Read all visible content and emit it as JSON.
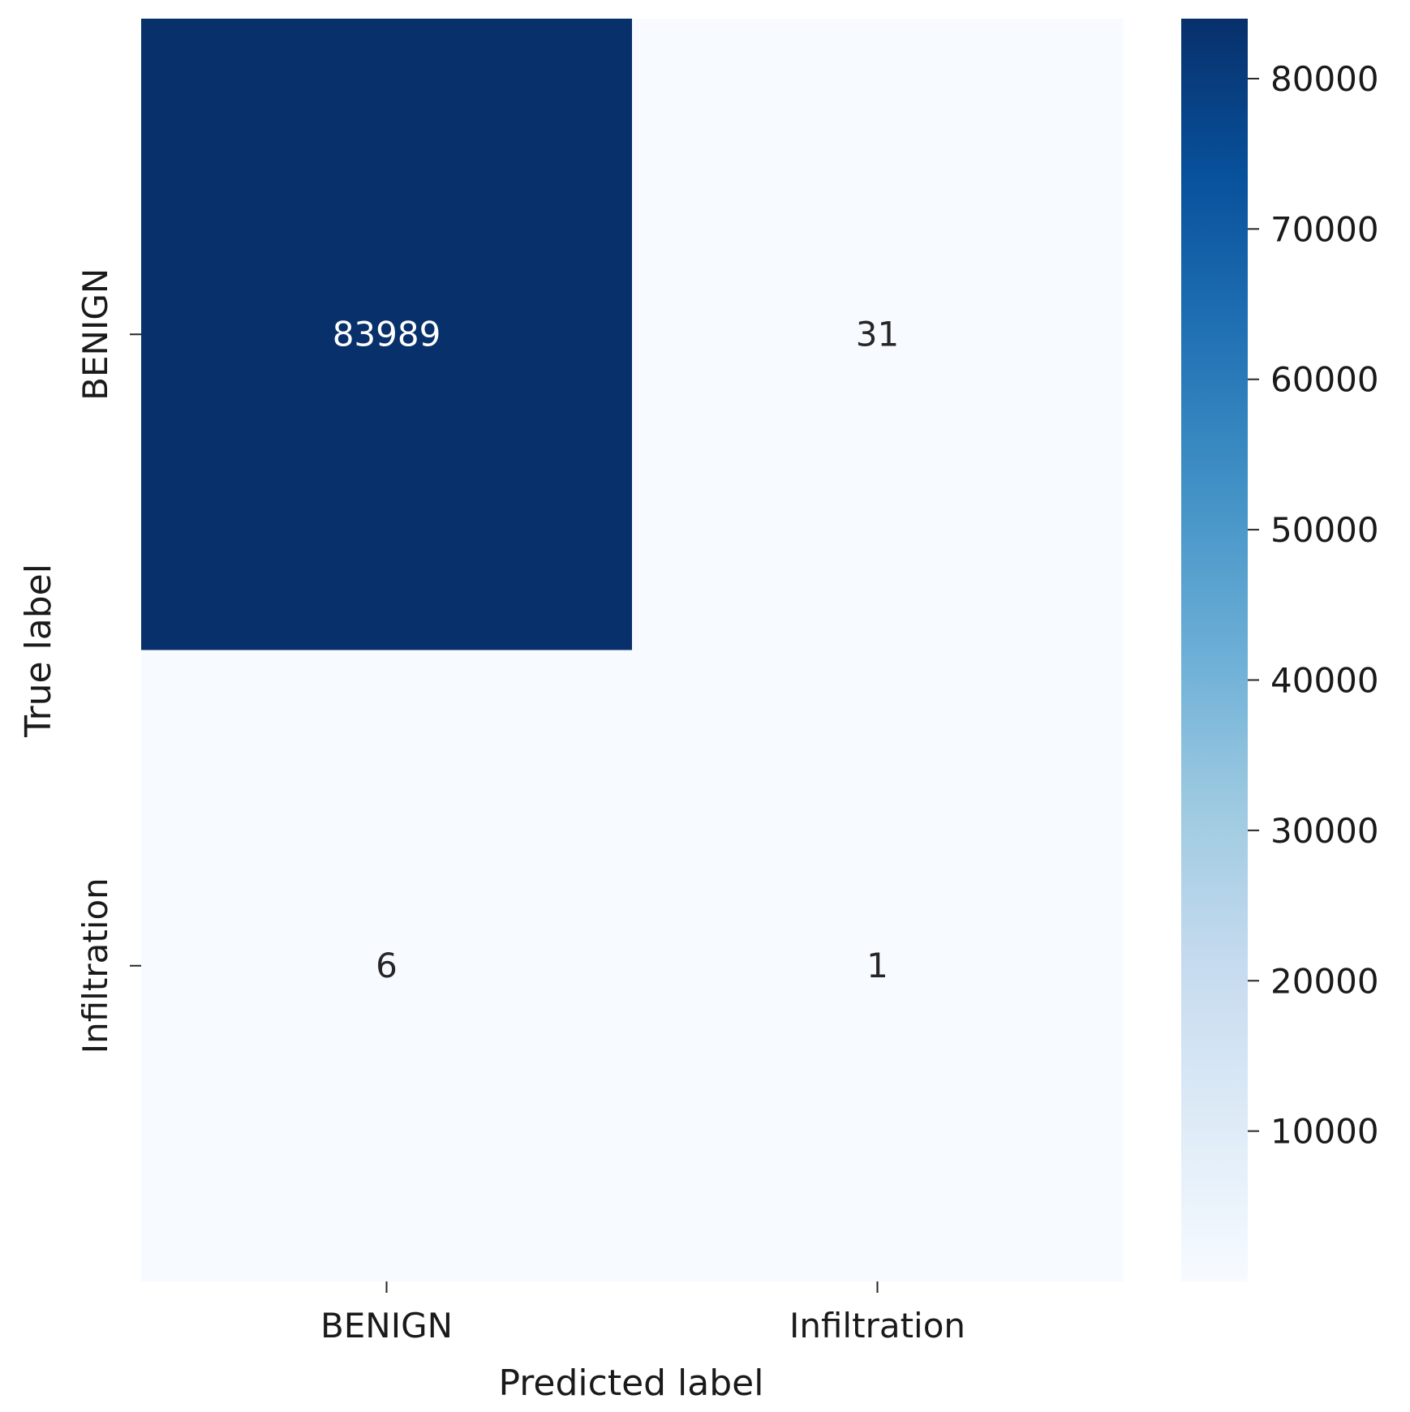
{
  "chart_data": {
    "type": "heatmap",
    "title": "",
    "xlabel": "Predicted label",
    "ylabel": "True label",
    "x_categories": [
      "BENIGN",
      "Infiltration"
    ],
    "y_categories": [
      "BENIGN",
      "Infiltration"
    ],
    "values": [
      [
        83989,
        31
      ],
      [
        6,
        1
      ]
    ],
    "cell_labels": [
      [
        "83989",
        "31"
      ],
      [
        "6",
        "1"
      ]
    ],
    "colormap": "Blues",
    "colors": {
      "min": "#f7fbff",
      "max": "#08306b"
    },
    "colorbar": {
      "range": [
        1,
        83989
      ],
      "ticks": [
        10000,
        20000,
        30000,
        40000,
        50000,
        60000,
        70000,
        80000
      ],
      "tick_labels": [
        "10000",
        "20000",
        "30000",
        "40000",
        "50000",
        "60000",
        "70000",
        "80000"
      ]
    },
    "legend": "none",
    "grid": false
  }
}
